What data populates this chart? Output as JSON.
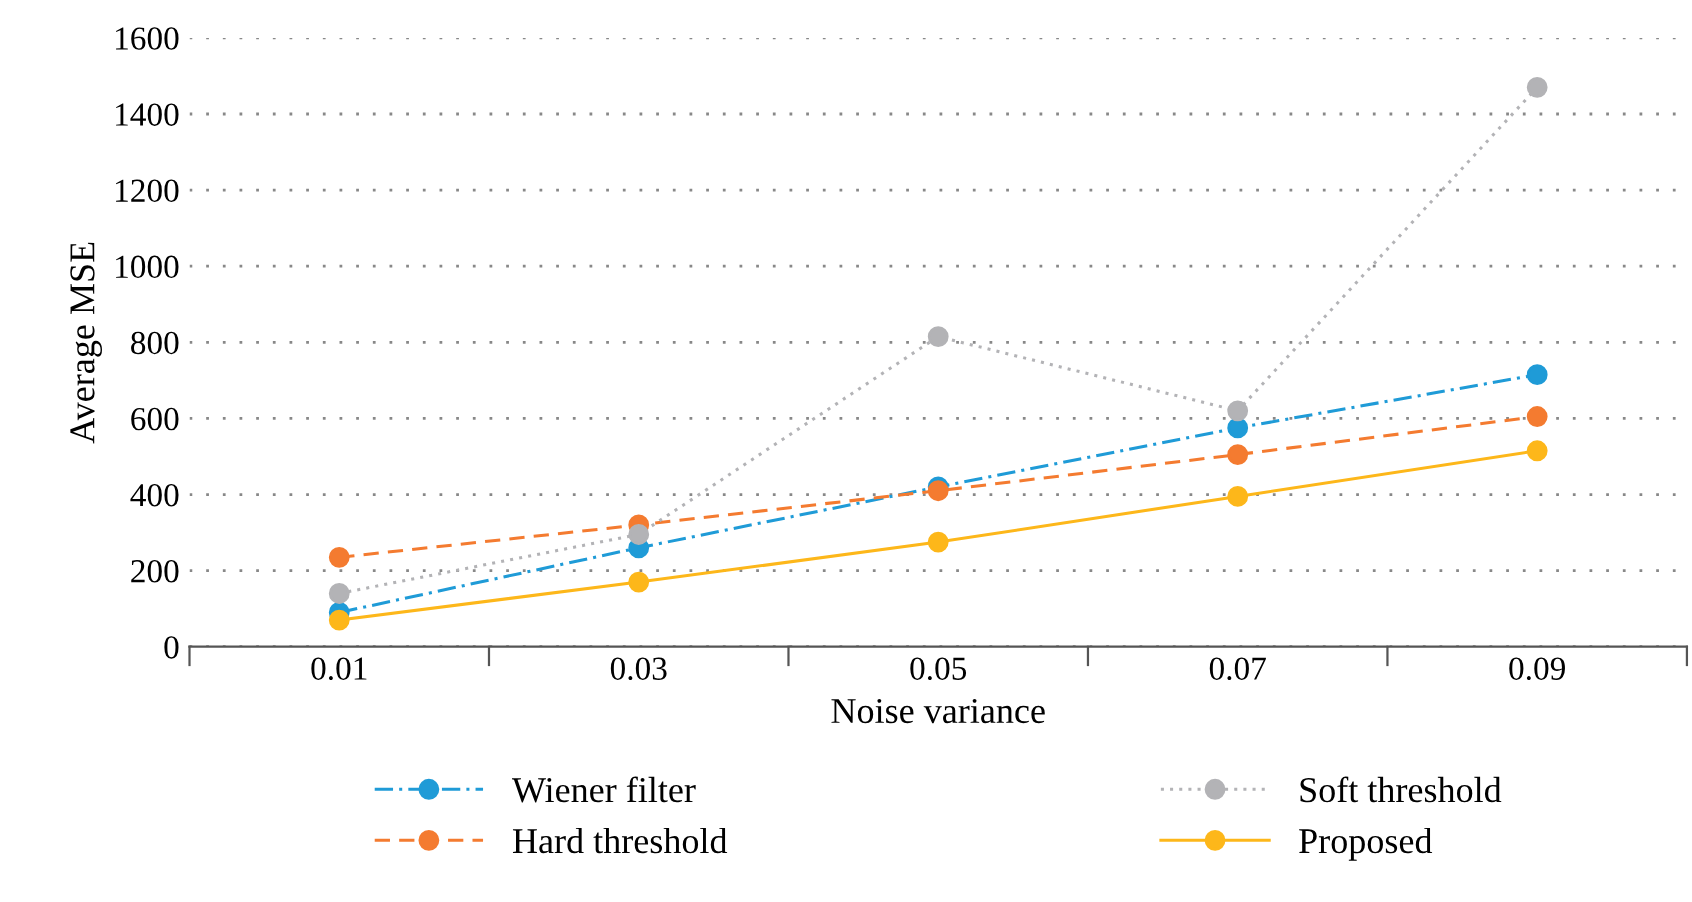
{
  "chart_data": {
    "type": "line",
    "xlabel": "Noise variance",
    "ylabel": "Average MSE",
    "categories": [
      "0.01",
      "0.03",
      "0.05",
      "0.07",
      "0.09"
    ],
    "series": [
      {
        "name": "Wiener filter",
        "color": "#1f9bd7",
        "line_style": "dashdot",
        "values": [
          90,
          260,
          420,
          575,
          715
        ]
      },
      {
        "name": "Hard threshold",
        "color": "#f47b30",
        "line_style": "dashed",
        "values": [
          235,
          320,
          410,
          505,
          605
        ]
      },
      {
        "name": "Soft threshold",
        "color": "#b3b3b6",
        "line_style": "dotted",
        "values": [
          140,
          295,
          815,
          620,
          1470
        ]
      },
      {
        "name": "Proposed",
        "color": "#fdb71a",
        "line_style": "solid",
        "values": [
          70,
          170,
          275,
          395,
          515
        ]
      }
    ],
    "ylim": [
      0,
      1600
    ],
    "yticks": [
      0,
      200,
      400,
      600,
      800,
      1000,
      1200,
      1400,
      1600
    ],
    "grid": "y",
    "legend": "bottom",
    "marker": "circle"
  }
}
